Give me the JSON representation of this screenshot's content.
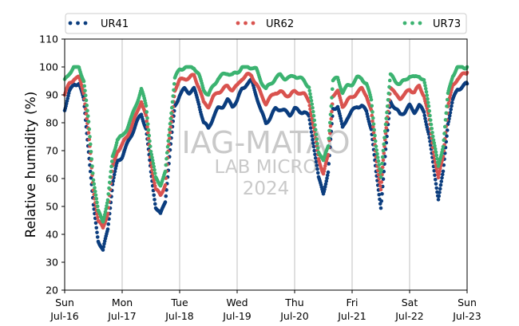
{
  "chart_data": {
    "type": "scatter",
    "ylabel": "Relative humidity (%)",
    "ylim": [
      20,
      110
    ],
    "yticks": [
      "20",
      "30",
      "40",
      "50",
      "60",
      "70",
      "80",
      "90",
      "100",
      "110"
    ],
    "xlim": [
      "2024-07-16",
      "2024-07-23"
    ],
    "xticks": [
      {
        "day": "Sun",
        "date": "Jul-16"
      },
      {
        "day": "Mon",
        "date": "Jul-17"
      },
      {
        "day": "Tue",
        "date": "Jul-18"
      },
      {
        "day": "Wed",
        "date": "Jul-19"
      },
      {
        "day": "Thu",
        "date": "Jul-20"
      },
      {
        "day": "Fri",
        "date": "Jul-21"
      },
      {
        "day": "Sat",
        "date": "Jul-22"
      },
      {
        "day": "Sun",
        "date": "Jul-23"
      }
    ],
    "grid": "vertical",
    "legend_position": "top",
    "watermark": [
      "IAG-MATAO",
      "LAB MICRO",
      "2024"
    ],
    "series": [
      {
        "name": "UR41",
        "color": "#0b3d7e",
        "points": [
          [
            "2024-07-16 00:00",
            85
          ],
          [
            "2024-07-16 02:00",
            91
          ],
          [
            "2024-07-16 04:00",
            94
          ],
          [
            "2024-07-16 06:00",
            94
          ],
          [
            "2024-07-16 08:00",
            88
          ],
          [
            "2024-07-16 10:00",
            70
          ],
          [
            "2024-07-16 12:00",
            50
          ],
          [
            "2024-07-16 14:00",
            38
          ],
          [
            "2024-07-16 16:00",
            34
          ],
          [
            "2024-07-16 18:00",
            42
          ],
          [
            "2024-07-16 20:00",
            58
          ],
          [
            "2024-07-16 22:00",
            66
          ],
          [
            "2024-07-17 00:00",
            68
          ],
          [
            "2024-07-17 02:00",
            72
          ],
          [
            "2024-07-17 04:00",
            76
          ],
          [
            "2024-07-17 06:00",
            80
          ],
          [
            "2024-07-17 08:00",
            83
          ],
          [
            "2024-07-17 10:00",
            78
          ],
          [
            "2024-07-17 12:00",
            62
          ],
          [
            "2024-07-17 14:00",
            50
          ],
          [
            "2024-07-17 16:00",
            47
          ],
          [
            "2024-07-17 18:00",
            52
          ],
          [
            "2024-07-17 20:00",
            70
          ],
          [
            "2024-07-17 22:00",
            86
          ],
          [
            "2024-07-18 00:00",
            90
          ],
          [
            "2024-07-18 02:00",
            92
          ],
          [
            "2024-07-18 04:00",
            91
          ],
          [
            "2024-07-18 06:00",
            92
          ],
          [
            "2024-07-18 08:00",
            87
          ],
          [
            "2024-07-18 10:00",
            80
          ],
          [
            "2024-07-18 12:00",
            78
          ],
          [
            "2024-07-18 14:00",
            82
          ],
          [
            "2024-07-18 16:00",
            85
          ],
          [
            "2024-07-18 18:00",
            86
          ],
          [
            "2024-07-18 20:00",
            88
          ],
          [
            "2024-07-18 22:00",
            86
          ],
          [
            "2024-07-19 00:00",
            88
          ],
          [
            "2024-07-19 02:00",
            92
          ],
          [
            "2024-07-19 04:00",
            94
          ],
          [
            "2024-07-19 06:00",
            95
          ],
          [
            "2024-07-19 08:00",
            90
          ],
          [
            "2024-07-19 10:00",
            84
          ],
          [
            "2024-07-19 12:00",
            80
          ],
          [
            "2024-07-19 14:00",
            82
          ],
          [
            "2024-07-19 16:00",
            85
          ],
          [
            "2024-07-19 18:00",
            85
          ],
          [
            "2024-07-19 20:00",
            84
          ],
          [
            "2024-07-19 22:00",
            83
          ],
          [
            "2024-07-20 00:00",
            85
          ],
          [
            "2024-07-20 02:00",
            84
          ],
          [
            "2024-07-20 04:00",
            84
          ],
          [
            "2024-07-20 06:00",
            82
          ],
          [
            "2024-07-20 08:00",
            72
          ],
          [
            "2024-07-20 10:00",
            60
          ],
          [
            "2024-07-20 12:00",
            55
          ],
          [
            "2024-07-20 14:00",
            62
          ],
          [
            "2024-07-20 16:00",
            85
          ],
          [
            "2024-07-20 18:00",
            86
          ],
          [
            "2024-07-20 20:00",
            78
          ],
          [
            "2024-07-20 22:00",
            82
          ],
          [
            "2024-07-21 00:00",
            84
          ],
          [
            "2024-07-21 02:00",
            86
          ],
          [
            "2024-07-21 04:00",
            86
          ],
          [
            "2024-07-21 06:00",
            84
          ],
          [
            "2024-07-21 08:00",
            78
          ],
          [
            "2024-07-21 10:00",
            62
          ],
          [
            "2024-07-21 12:00",
            50
          ],
          [
            "2024-07-21 14:00",
            70
          ],
          [
            "2024-07-21 16:00",
            88
          ],
          [
            "2024-07-21 18:00",
            85
          ],
          [
            "2024-07-21 20:00",
            83
          ],
          [
            "2024-07-21 22:00",
            84
          ],
          [
            "2024-07-22 00:00",
            86
          ],
          [
            "2024-07-22 02:00",
            84
          ],
          [
            "2024-07-22 04:00",
            86
          ],
          [
            "2024-07-22 06:00",
            84
          ],
          [
            "2024-07-22 08:00",
            76
          ],
          [
            "2024-07-22 10:00",
            64
          ],
          [
            "2024-07-22 12:00",
            53
          ],
          [
            "2024-07-22 14:00",
            62
          ],
          [
            "2024-07-22 16:00",
            80
          ],
          [
            "2024-07-22 18:00",
            88
          ],
          [
            "2024-07-22 20:00",
            92
          ],
          [
            "2024-07-22 22:00",
            93
          ],
          [
            "2024-07-23 00:00",
            94
          ]
        ]
      },
      {
        "name": "UR62",
        "color": "#d9534f",
        "points": [
          [
            "2024-07-16 00:00",
            90
          ],
          [
            "2024-07-16 02:00",
            94
          ],
          [
            "2024-07-16 04:00",
            96
          ],
          [
            "2024-07-16 06:00",
            96
          ],
          [
            "2024-07-16 08:00",
            91
          ],
          [
            "2024-07-16 10:00",
            76
          ],
          [
            "2024-07-16 12:00",
            56
          ],
          [
            "2024-07-16 14:00",
            45
          ],
          [
            "2024-07-16 16:00",
            42
          ],
          [
            "2024-07-16 18:00",
            48
          ],
          [
            "2024-07-16 20:00",
            64
          ],
          [
            "2024-07-16 22:00",
            70
          ],
          [
            "2024-07-17 00:00",
            72
          ],
          [
            "2024-07-17 02:00",
            75
          ],
          [
            "2024-07-17 04:00",
            79
          ],
          [
            "2024-07-17 06:00",
            83
          ],
          [
            "2024-07-17 08:00",
            88
          ],
          [
            "2024-07-17 10:00",
            82
          ],
          [
            "2024-07-17 12:00",
            66
          ],
          [
            "2024-07-17 14:00",
            56
          ],
          [
            "2024-07-17 16:00",
            54
          ],
          [
            "2024-07-17 18:00",
            58
          ],
          [
            "2024-07-17 20:00",
            76
          ],
          [
            "2024-07-17 22:00",
            92
          ],
          [
            "2024-07-18 00:00",
            95
          ],
          [
            "2024-07-18 02:00",
            96
          ],
          [
            "2024-07-18 04:00",
            96
          ],
          [
            "2024-07-18 06:00",
            97
          ],
          [
            "2024-07-18 08:00",
            93
          ],
          [
            "2024-07-18 10:00",
            87
          ],
          [
            "2024-07-18 12:00",
            86
          ],
          [
            "2024-07-18 14:00",
            89
          ],
          [
            "2024-07-18 16:00",
            91
          ],
          [
            "2024-07-18 18:00",
            92
          ],
          [
            "2024-07-18 20:00",
            93
          ],
          [
            "2024-07-18 22:00",
            92
          ],
          [
            "2024-07-19 00:00",
            93
          ],
          [
            "2024-07-19 02:00",
            96
          ],
          [
            "2024-07-19 04:00",
            97
          ],
          [
            "2024-07-19 06:00",
            97
          ],
          [
            "2024-07-19 08:00",
            94
          ],
          [
            "2024-07-19 10:00",
            90
          ],
          [
            "2024-07-19 12:00",
            87
          ],
          [
            "2024-07-19 14:00",
            89
          ],
          [
            "2024-07-19 16:00",
            91
          ],
          [
            "2024-07-19 18:00",
            91
          ],
          [
            "2024-07-19 20:00",
            90
          ],
          [
            "2024-07-19 22:00",
            90
          ],
          [
            "2024-07-20 00:00",
            91
          ],
          [
            "2024-07-20 02:00",
            91
          ],
          [
            "2024-07-20 04:00",
            90
          ],
          [
            "2024-07-20 06:00",
            88
          ],
          [
            "2024-07-20 08:00",
            78
          ],
          [
            "2024-07-20 10:00",
            67
          ],
          [
            "2024-07-20 12:00",
            62
          ],
          [
            "2024-07-20 14:00",
            68
          ],
          [
            "2024-07-20 16:00",
            90
          ],
          [
            "2024-07-20 18:00",
            91
          ],
          [
            "2024-07-20 20:00",
            86
          ],
          [
            "2024-07-20 22:00",
            88
          ],
          [
            "2024-07-21 00:00",
            89
          ],
          [
            "2024-07-21 02:00",
            91
          ],
          [
            "2024-07-21 04:00",
            92
          ],
          [
            "2024-07-21 06:00",
            90
          ],
          [
            "2024-07-21 08:00",
            84
          ],
          [
            "2024-07-21 10:00",
            68
          ],
          [
            "2024-07-21 12:00",
            56
          ],
          [
            "2024-07-21 14:00",
            76
          ],
          [
            "2024-07-21 16:00",
            93
          ],
          [
            "2024-07-21 18:00",
            90
          ],
          [
            "2024-07-21 20:00",
            89
          ],
          [
            "2024-07-21 22:00",
            90
          ],
          [
            "2024-07-22 00:00",
            92
          ],
          [
            "2024-07-22 02:00",
            91
          ],
          [
            "2024-07-22 04:00",
            93
          ],
          [
            "2024-07-22 06:00",
            90
          ],
          [
            "2024-07-22 08:00",
            82
          ],
          [
            "2024-07-22 10:00",
            70
          ],
          [
            "2024-07-22 12:00",
            60
          ],
          [
            "2024-07-22 14:00",
            68
          ],
          [
            "2024-07-22 16:00",
            86
          ],
          [
            "2024-07-22 18:00",
            93
          ],
          [
            "2024-07-22 20:00",
            96
          ],
          [
            "2024-07-22 22:00",
            97
          ],
          [
            "2024-07-23 00:00",
            98
          ]
        ]
      },
      {
        "name": "UR73",
        "color": "#3cb371",
        "points": [
          [
            "2024-07-16 00:00",
            95
          ],
          [
            "2024-07-16 02:00",
            98
          ],
          [
            "2024-07-16 04:00",
            100
          ],
          [
            "2024-07-16 06:00",
            100
          ],
          [
            "2024-07-16 08:00",
            95
          ],
          [
            "2024-07-16 10:00",
            80
          ],
          [
            "2024-07-16 12:00",
            60
          ],
          [
            "2024-07-16 14:00",
            48
          ],
          [
            "2024-07-16 16:00",
            45
          ],
          [
            "2024-07-16 18:00",
            52
          ],
          [
            "2024-07-16 20:00",
            68
          ],
          [
            "2024-07-16 22:00",
            74
          ],
          [
            "2024-07-17 00:00",
            75
          ],
          [
            "2024-07-17 02:00",
            78
          ],
          [
            "2024-07-17 04:00",
            82
          ],
          [
            "2024-07-17 06:00",
            87
          ],
          [
            "2024-07-17 08:00",
            92
          ],
          [
            "2024-07-17 10:00",
            86
          ],
          [
            "2024-07-17 12:00",
            70
          ],
          [
            "2024-07-17 14:00",
            60
          ],
          [
            "2024-07-17 16:00",
            58
          ],
          [
            "2024-07-17 18:00",
            62
          ],
          [
            "2024-07-17 20:00",
            80
          ],
          [
            "2024-07-17 22:00",
            96
          ],
          [
            "2024-07-18 00:00",
            99
          ],
          [
            "2024-07-18 02:00",
            100
          ],
          [
            "2024-07-18 04:00",
            100
          ],
          [
            "2024-07-18 06:00",
            100
          ],
          [
            "2024-07-18 08:00",
            97
          ],
          [
            "2024-07-18 10:00",
            92
          ],
          [
            "2024-07-18 12:00",
            90
          ],
          [
            "2024-07-18 14:00",
            93
          ],
          [
            "2024-07-18 16:00",
            96
          ],
          [
            "2024-07-18 18:00",
            97
          ],
          [
            "2024-07-18 20:00",
            98
          ],
          [
            "2024-07-18 22:00",
            97
          ],
          [
            "2024-07-19 00:00",
            98
          ],
          [
            "2024-07-19 02:00",
            100
          ],
          [
            "2024-07-19 04:00",
            100
          ],
          [
            "2024-07-19 06:00",
            100
          ],
          [
            "2024-07-19 08:00",
            99
          ],
          [
            "2024-07-19 10:00",
            95
          ],
          [
            "2024-07-19 12:00",
            92
          ],
          [
            "2024-07-19 14:00",
            94
          ],
          [
            "2024-07-19 16:00",
            96
          ],
          [
            "2024-07-19 18:00",
            97
          ],
          [
            "2024-07-19 20:00",
            96
          ],
          [
            "2024-07-19 22:00",
            96
          ],
          [
            "2024-07-20 00:00",
            97
          ],
          [
            "2024-07-20 02:00",
            96
          ],
          [
            "2024-07-20 04:00",
            95
          ],
          [
            "2024-07-20 06:00",
            93
          ],
          [
            "2024-07-20 08:00",
            82
          ],
          [
            "2024-07-20 10:00",
            70
          ],
          [
            "2024-07-20 12:00",
            66
          ],
          [
            "2024-07-20 14:00",
            72
          ],
          [
            "2024-07-20 16:00",
            95
          ],
          [
            "2024-07-20 18:00",
            96
          ],
          [
            "2024-07-20 20:00",
            91
          ],
          [
            "2024-07-20 22:00",
            93
          ],
          [
            "2024-07-21 00:00",
            94
          ],
          [
            "2024-07-21 02:00",
            96
          ],
          [
            "2024-07-21 04:00",
            96
          ],
          [
            "2024-07-21 06:00",
            94
          ],
          [
            "2024-07-21 08:00",
            88
          ],
          [
            "2024-07-21 10:00",
            72
          ],
          [
            "2024-07-21 12:00",
            60
          ],
          [
            "2024-07-21 14:00",
            80
          ],
          [
            "2024-07-21 16:00",
            97
          ],
          [
            "2024-07-21 18:00",
            95
          ],
          [
            "2024-07-21 20:00",
            94
          ],
          [
            "2024-07-21 22:00",
            95
          ],
          [
            "2024-07-22 00:00",
            97
          ],
          [
            "2024-07-22 02:00",
            96
          ],
          [
            "2024-07-22 04:00",
            97
          ],
          [
            "2024-07-22 06:00",
            95
          ],
          [
            "2024-07-22 08:00",
            86
          ],
          [
            "2024-07-22 10:00",
            74
          ],
          [
            "2024-07-22 12:00",
            64
          ],
          [
            "2024-07-22 14:00",
            72
          ],
          [
            "2024-07-22 16:00",
            90
          ],
          [
            "2024-07-22 18:00",
            97
          ],
          [
            "2024-07-22 20:00",
            100
          ],
          [
            "2024-07-22 22:00",
            100
          ],
          [
            "2024-07-23 00:00",
            100
          ]
        ]
      }
    ]
  }
}
